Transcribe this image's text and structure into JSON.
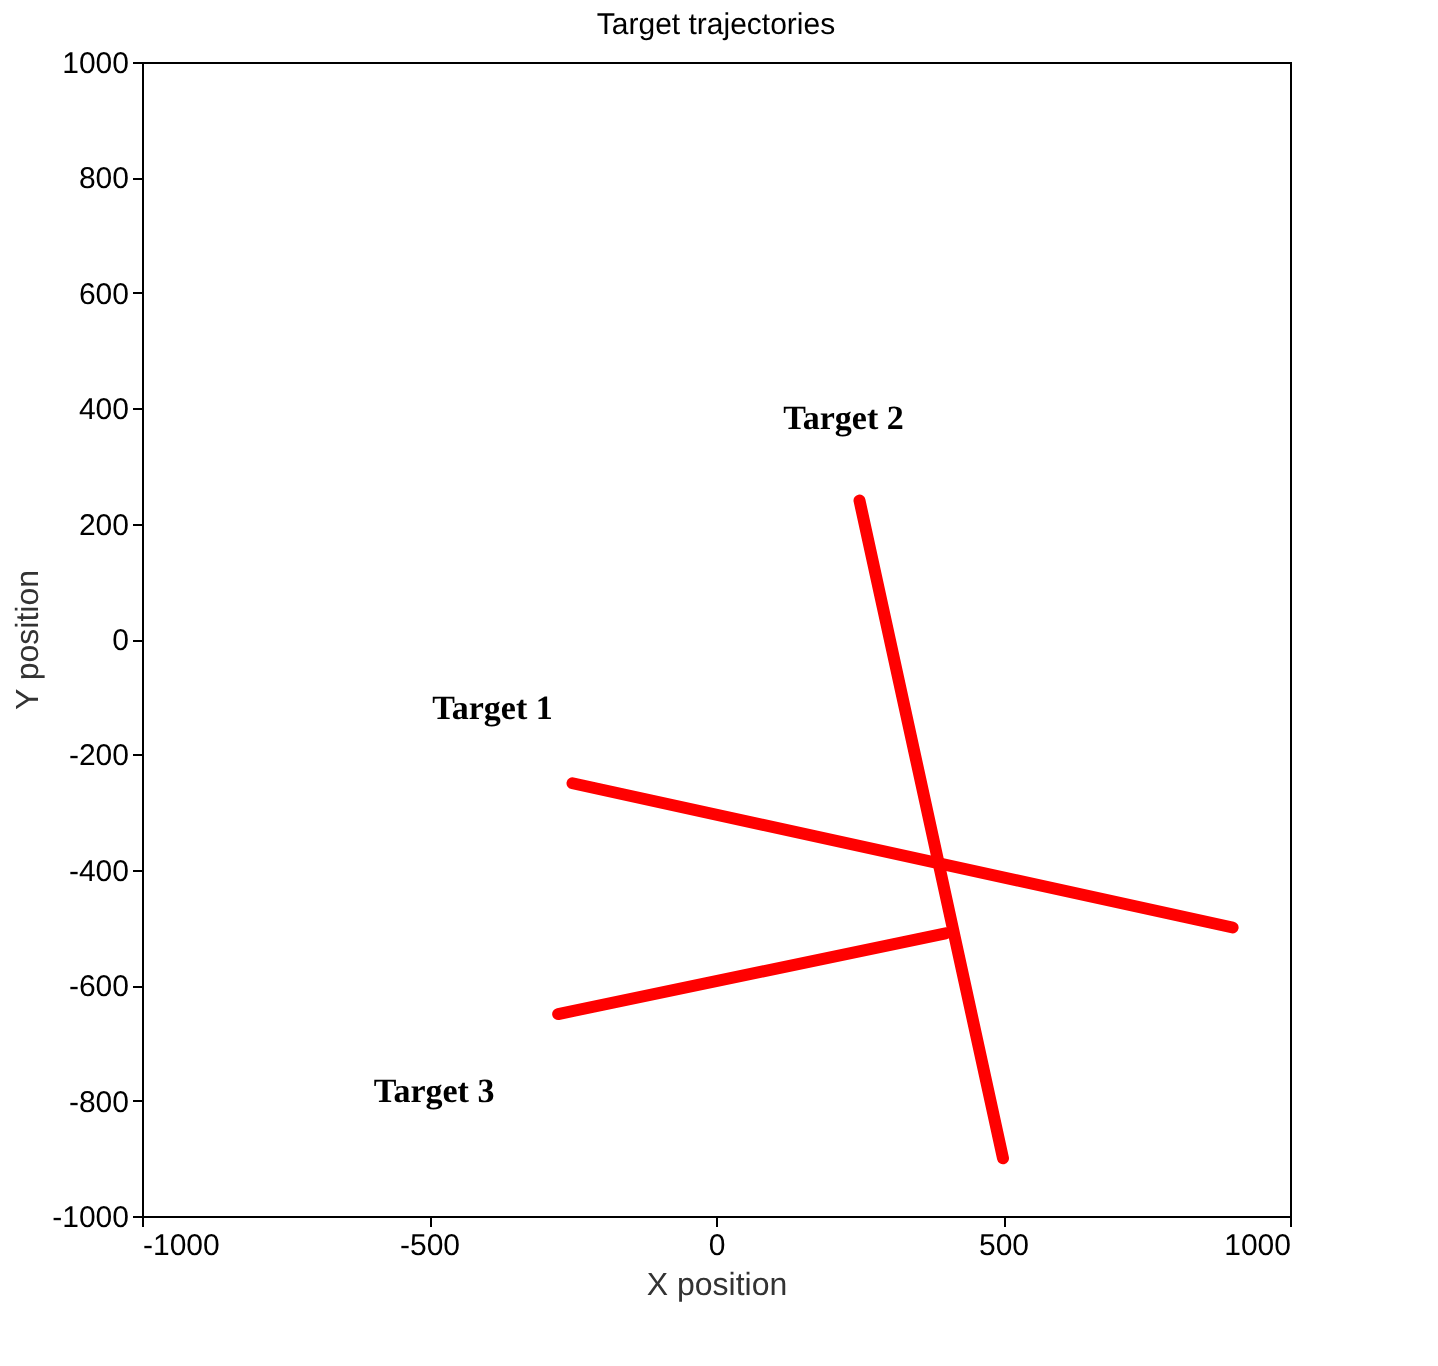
{
  "chart_data": {
    "type": "line",
    "title": "Target trajectories",
    "xlabel": "X position",
    "ylabel": "Y position",
    "series": [
      {
        "name": "Target 1",
        "color": "#ff0000",
        "x": [
          -250,
          900
        ],
        "values": [
          -250,
          -500
        ]
      },
      {
        "name": "Target 2",
        "color": "#ff0000",
        "x": [
          250,
          500
        ],
        "values": [
          240,
          -900
        ]
      },
      {
        "name": "Target 3",
        "color": "#ff0000",
        "x": [
          -275,
          400
        ],
        "values": [
          -650,
          -510
        ]
      }
    ],
    "xlim": [
      -1000,
      1000
    ],
    "xticks": [
      -1000,
      -500,
      0,
      500,
      1000
    ],
    "ylim": [
      -1000,
      1000
    ],
    "yticks": [
      -1000,
      -800,
      -600,
      -400,
      -200,
      0,
      200,
      400,
      600,
      800,
      1000
    ],
    "grid": false,
    "marker": "none",
    "line_style": "solid"
  }
}
